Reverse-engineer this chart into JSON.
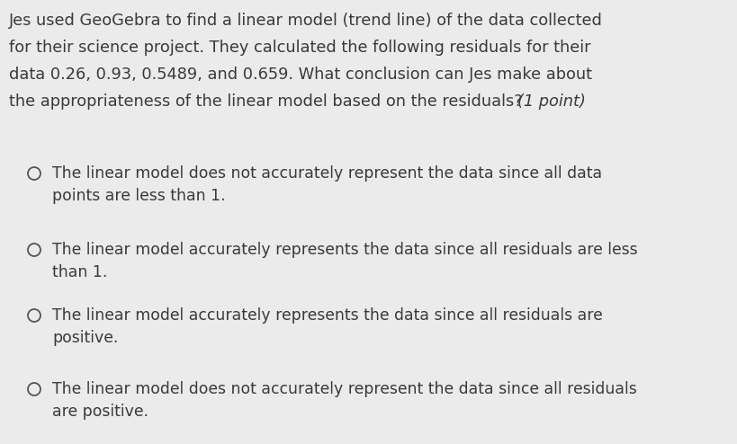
{
  "background_color": "#ebebeb",
  "question_line1": "Jes used GeoGebra to find a linear model (trend line) of the data collected",
  "question_line2": "for their science project. They calculated the following residuals for their",
  "question_line3": "data 0.26, 0.93, 0.5489, and 0.659. What conclusion can Jes make about",
  "question_line4": "the appropriateness of the linear model based on the residuals?",
  "question_suffix": " (1 point)",
  "options": [
    "The linear model does not accurately represent the data since all data\npoints are less than 1.",
    "The linear model accurately represents the data since all residuals are less\nthan 1.",
    "The linear model accurately represents the data since all residuals are\npositive.",
    "The linear model does not accurately represent the data since all residuals\nare positive."
  ],
  "question_fontsize": 12.8,
  "option_fontsize": 12.4,
  "text_color": "#3a3a3a",
  "circle_color": "#555555",
  "fig_width": 8.19,
  "fig_height": 4.94,
  "dpi": 100
}
